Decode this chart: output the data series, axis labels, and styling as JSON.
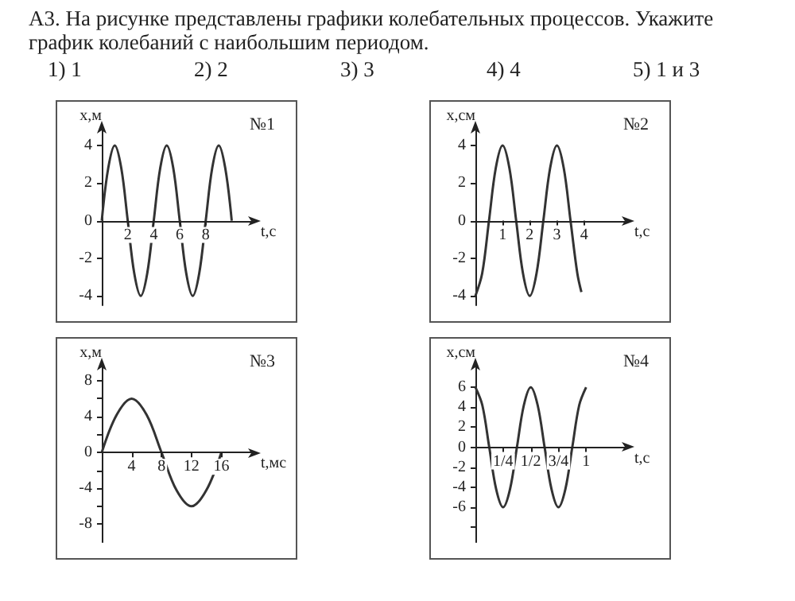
{
  "chart_data": [
    {
      "type": "other",
      "annotations": [
        "А3. На рисунке представлены графики  колебательных процессов. Укажите график колебаний с наибольшим периодом.",
        "1) 1",
        "2) 2",
        "3) 3",
        "4) 4",
        "5) 1 и 3"
      ]
    },
    {
      "type": "line",
      "title": "№1",
      "xlabel": "t,с",
      "ylabel": "x,м",
      "color": "#333333",
      "marker": "none",
      "grid": false,
      "x": [
        0,
        0.5,
        1,
        1.5,
        2,
        2.5,
        3,
        3.5,
        4,
        4.5,
        5,
        5.5,
        6,
        6.5,
        7,
        7.5,
        8,
        8.5,
        9,
        9.5,
        10
      ],
      "values": [
        0,
        2.8,
        4,
        2.8,
        0,
        -2.8,
        -4,
        -2.8,
        0,
        2.8,
        4,
        2.8,
        0,
        -2.8,
        -4,
        -2.8,
        0,
        2.8,
        4,
        2.8,
        0
      ],
      "xlim": [
        0,
        11.5
      ],
      "xticks": [
        2,
        4,
        6,
        8
      ],
      "ylim": [
        -4.5,
        4.8
      ],
      "yticks": [
        -4,
        -2,
        0,
        2,
        4
      ]
    },
    {
      "type": "line",
      "title": "№2",
      "xlabel": "t,с",
      "ylabel": "x,см",
      "color": "#333333",
      "marker": "none",
      "grid": false,
      "x": [
        0,
        0.25,
        0.5,
        0.75,
        1,
        1.25,
        1.5,
        1.75,
        2,
        2.25,
        2.5,
        2.75,
        3,
        3.25,
        3.5,
        3.75,
        3.9
      ],
      "values": [
        -4,
        -2.8,
        0,
        2.8,
        4,
        2.8,
        0,
        -2.8,
        -4,
        -2.8,
        0,
        2.8,
        4,
        2.8,
        0,
        -2.8,
        -3.8
      ],
      "xlim": [
        0,
        5.5
      ],
      "xticks": [
        1,
        2,
        3,
        4
      ],
      "ylim": [
        -4.5,
        4.8
      ],
      "yticks": [
        -4,
        -2,
        0,
        2,
        4
      ]
    },
    {
      "type": "line",
      "title": "№3",
      "xlabel": "t,мс",
      "ylabel": "x,м",
      "color": "#333333",
      "marker": "none",
      "grid": false,
      "x": [
        0,
        2,
        4,
        6,
        8,
        10,
        12,
        14,
        16
      ],
      "values": [
        0,
        4.2,
        6,
        4.2,
        0,
        -4.2,
        -6,
        -4.2,
        0
      ],
      "xlim": [
        0,
        20
      ],
      "xticks": [
        4,
        8,
        12,
        16
      ],
      "ylim": [
        -10,
        9.5
      ],
      "yticks": [
        {
          "value": -8,
          "label": "-8"
        },
        {
          "value": -6,
          "label": null
        },
        {
          "value": -4,
          "label": "-4"
        },
        {
          "value": -2,
          "label": null
        },
        {
          "value": 0,
          "label": "0"
        },
        {
          "value": 2,
          "label": null
        },
        {
          "value": 4,
          "label": "4"
        },
        {
          "value": 6,
          "label": null
        },
        {
          "value": 8,
          "label": "8"
        }
      ]
    },
    {
      "type": "line",
      "title": "№4",
      "xlabel": "t,с",
      "ylabel": "x,см",
      "color": "#333333",
      "marker": "none",
      "grid": false,
      "x": [
        0,
        0.0625,
        0.125,
        0.1875,
        0.25,
        0.3125,
        0.375,
        0.4375,
        0.5,
        0.5625,
        0.625,
        0.6875,
        0.75,
        0.8125,
        0.875,
        0.9375,
        1
      ],
      "values": [
        6,
        4.2,
        0,
        -4.2,
        -6,
        -4.2,
        0,
        4.2,
        6,
        4.2,
        0,
        -4.2,
        -6,
        -4.2,
        0,
        4.2,
        6
      ],
      "xlim": [
        0,
        1.35
      ],
      "xticks": [
        {
          "value": 0.25,
          "label": "1/4"
        },
        {
          "value": 0.5,
          "label": "1/2"
        },
        {
          "value": 0.75,
          "label": "3/4"
        },
        {
          "value": 1,
          "label": "1"
        }
      ],
      "ylim": [
        -9.5,
        8
      ],
      "yticks": [
        {
          "value": -8,
          "label": null
        },
        {
          "value": -6,
          "label": "-6"
        },
        {
          "value": -4,
          "label": "-4"
        },
        {
          "value": -2,
          "label": "-2"
        },
        {
          "value": 0,
          "label": "0"
        },
        {
          "value": 2,
          "label": "2"
        },
        {
          "value": 4,
          "label": "4"
        },
        {
          "value": 6,
          "label": "6"
        }
      ]
    }
  ]
}
